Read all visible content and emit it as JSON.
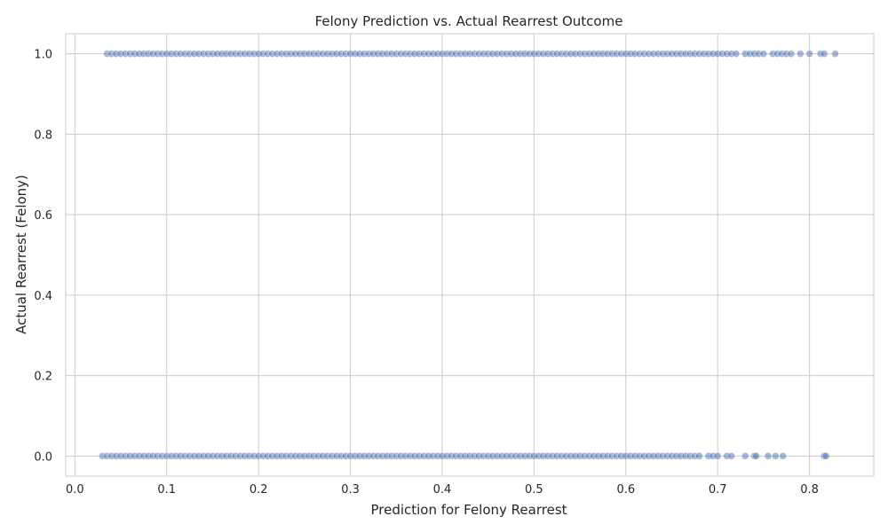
{
  "chart_data": {
    "type": "scatter",
    "title": "Felony Prediction vs. Actual Rearrest Outcome",
    "xlabel": "Prediction for Felony Rearrest",
    "ylabel": "Actual Rearrest (Felony)",
    "xlim": [
      -0.01,
      0.87
    ],
    "ylim": [
      -0.05,
      1.05
    ],
    "xticks": [
      0.0,
      0.1,
      0.2,
      0.3,
      0.4,
      0.5,
      0.6,
      0.7,
      0.8
    ],
    "xtick_labels": [
      "0.0",
      "0.1",
      "0.2",
      "0.3",
      "0.4",
      "0.5",
      "0.6",
      "0.7",
      "0.8"
    ],
    "yticks": [
      0.0,
      0.2,
      0.4,
      0.6,
      0.8,
      1.0
    ],
    "ytick_labels": [
      "0.0",
      "0.2",
      "0.4",
      "0.6",
      "0.8",
      "1.0"
    ],
    "grid": true,
    "legend": "none",
    "marker_color": "#4c72b0",
    "marker_alpha": 0.5,
    "series": [
      {
        "values_y": 1,
        "x": [
          0.035,
          0.04,
          0.045,
          0.05,
          0.055,
          0.06,
          0.065,
          0.07,
          0.075,
          0.08,
          0.085,
          0.09,
          0.095,
          0.1,
          0.105,
          0.11,
          0.115,
          0.12,
          0.125,
          0.13,
          0.135,
          0.14,
          0.145,
          0.15,
          0.155,
          0.16,
          0.165,
          0.17,
          0.175,
          0.18,
          0.185,
          0.19,
          0.195,
          0.2,
          0.205,
          0.21,
          0.215,
          0.22,
          0.225,
          0.23,
          0.235,
          0.24,
          0.245,
          0.25,
          0.255,
          0.26,
          0.265,
          0.27,
          0.275,
          0.28,
          0.285,
          0.29,
          0.295,
          0.3,
          0.305,
          0.31,
          0.315,
          0.32,
          0.325,
          0.33,
          0.335,
          0.34,
          0.345,
          0.35,
          0.355,
          0.36,
          0.365,
          0.37,
          0.375,
          0.38,
          0.385,
          0.39,
          0.395,
          0.4,
          0.405,
          0.41,
          0.415,
          0.42,
          0.425,
          0.43,
          0.435,
          0.44,
          0.445,
          0.45,
          0.455,
          0.46,
          0.465,
          0.47,
          0.475,
          0.48,
          0.485,
          0.49,
          0.495,
          0.5,
          0.505,
          0.51,
          0.515,
          0.52,
          0.525,
          0.53,
          0.535,
          0.54,
          0.545,
          0.55,
          0.555,
          0.56,
          0.565,
          0.57,
          0.575,
          0.58,
          0.585,
          0.59,
          0.595,
          0.6,
          0.605,
          0.61,
          0.615,
          0.62,
          0.625,
          0.63,
          0.635,
          0.64,
          0.645,
          0.65,
          0.655,
          0.66,
          0.665,
          0.67,
          0.675,
          0.68,
          0.685,
          0.69,
          0.695,
          0.7,
          0.705,
          0.71,
          0.715,
          0.72,
          0.73,
          0.735,
          0.74,
          0.745,
          0.75,
          0.76,
          0.765,
          0.77,
          0.775,
          0.78,
          0.79,
          0.8,
          0.812,
          0.816,
          0.828
        ]
      },
      {
        "values_y": 0,
        "x": [
          0.03,
          0.035,
          0.04,
          0.045,
          0.05,
          0.055,
          0.06,
          0.065,
          0.07,
          0.075,
          0.08,
          0.085,
          0.09,
          0.095,
          0.1,
          0.105,
          0.11,
          0.115,
          0.12,
          0.125,
          0.13,
          0.135,
          0.14,
          0.145,
          0.15,
          0.155,
          0.16,
          0.165,
          0.17,
          0.175,
          0.18,
          0.185,
          0.19,
          0.195,
          0.2,
          0.205,
          0.21,
          0.215,
          0.22,
          0.225,
          0.23,
          0.235,
          0.24,
          0.245,
          0.25,
          0.255,
          0.26,
          0.265,
          0.27,
          0.275,
          0.28,
          0.285,
          0.29,
          0.295,
          0.3,
          0.305,
          0.31,
          0.315,
          0.32,
          0.325,
          0.33,
          0.335,
          0.34,
          0.345,
          0.35,
          0.355,
          0.36,
          0.365,
          0.37,
          0.375,
          0.38,
          0.385,
          0.39,
          0.395,
          0.4,
          0.405,
          0.41,
          0.415,
          0.42,
          0.425,
          0.43,
          0.435,
          0.44,
          0.445,
          0.45,
          0.455,
          0.46,
          0.465,
          0.47,
          0.475,
          0.48,
          0.485,
          0.49,
          0.495,
          0.5,
          0.505,
          0.51,
          0.515,
          0.52,
          0.525,
          0.53,
          0.535,
          0.54,
          0.545,
          0.55,
          0.555,
          0.56,
          0.565,
          0.57,
          0.575,
          0.58,
          0.585,
          0.59,
          0.595,
          0.6,
          0.605,
          0.61,
          0.615,
          0.62,
          0.625,
          0.63,
          0.635,
          0.64,
          0.645,
          0.65,
          0.655,
          0.66,
          0.665,
          0.67,
          0.675,
          0.68,
          0.69,
          0.695,
          0.7,
          0.71,
          0.715,
          0.73,
          0.74,
          0.742,
          0.755,
          0.763,
          0.771,
          0.816,
          0.818
        ]
      }
    ]
  }
}
